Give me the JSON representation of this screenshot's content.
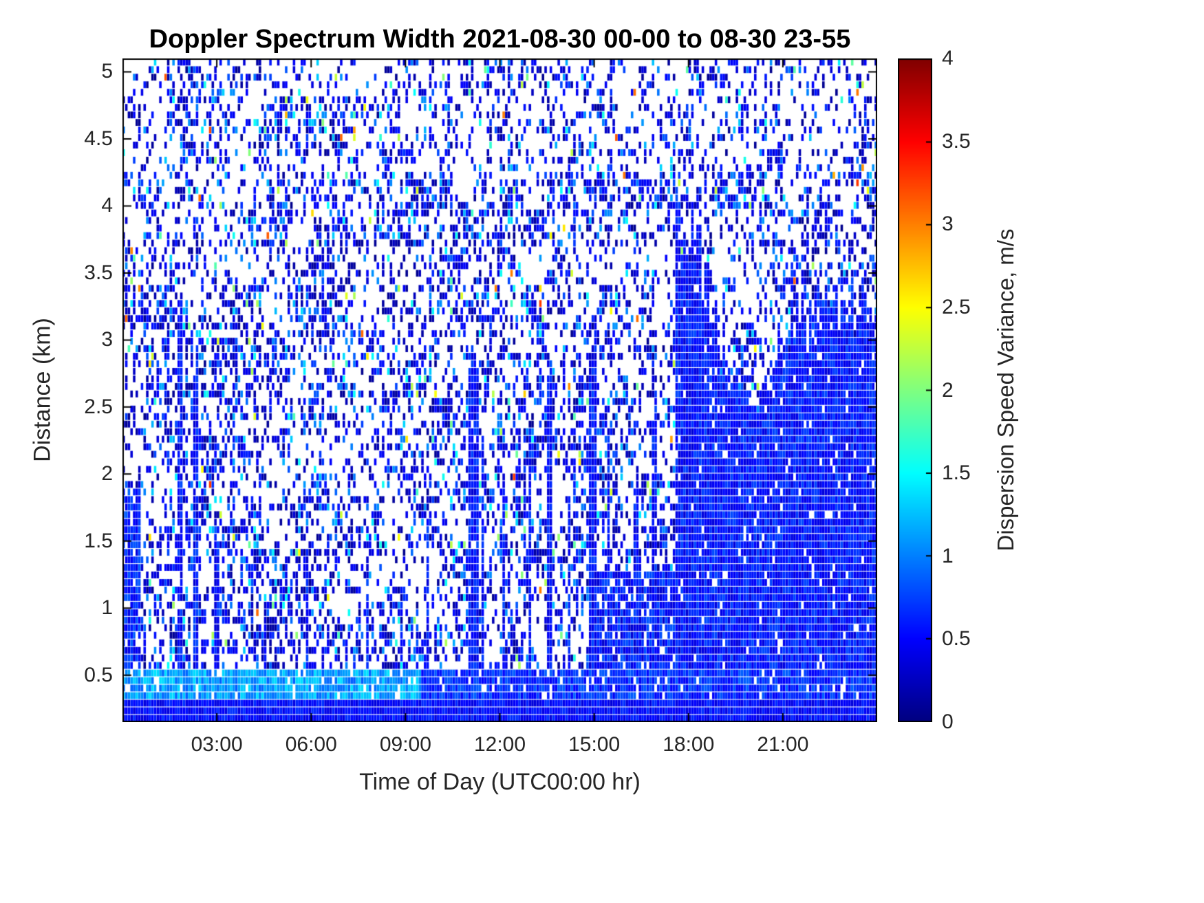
{
  "figure": {
    "background": "#ffffff",
    "frame_color": "#000000",
    "tick_color": "#262626"
  },
  "chart_data": {
    "type": "heatmap",
    "title": "Doppler Spectrum Width 2021-08-30 00-00 to 08-30 23-55",
    "xlabel": "Time of Day (UTC00:00 hr)",
    "ylabel": "Distance (km)",
    "x_range_hours": [
      0,
      24
    ],
    "x_ticks": [
      {
        "hour": 3,
        "label": "03:00"
      },
      {
        "hour": 6,
        "label": "06:00"
      },
      {
        "hour": 9,
        "label": "09:00"
      },
      {
        "hour": 12,
        "label": "12:00"
      },
      {
        "hour": 15,
        "label": "15:00"
      },
      {
        "hour": 18,
        "label": "18:00"
      },
      {
        "hour": 21,
        "label": "21:00"
      }
    ],
    "y_range_km": [
      0.15,
      5.1
    ],
    "y_ticks": [
      {
        "km": 0.5,
        "label": "0.5"
      },
      {
        "km": 1.0,
        "label": "1"
      },
      {
        "km": 1.5,
        "label": "1.5"
      },
      {
        "km": 2.0,
        "label": "2"
      },
      {
        "km": 2.5,
        "label": "2.5"
      },
      {
        "km": 3.0,
        "label": "3"
      },
      {
        "km": 3.5,
        "label": "3.5"
      },
      {
        "km": 4.0,
        "label": "4"
      },
      {
        "km": 4.5,
        "label": "4.5"
      },
      {
        "km": 5.0,
        "label": "5"
      }
    ],
    "colorbar": {
      "label": "Dispersion Speed Variance, m/s",
      "range": [
        0,
        4
      ],
      "colormap": "jet",
      "ticks": [
        {
          "v": 0,
          "label": "0"
        },
        {
          "v": 0.5,
          "label": "0.5"
        },
        {
          "v": 1,
          "label": "1"
        },
        {
          "v": 1.5,
          "label": "1.5"
        },
        {
          "v": 2,
          "label": "2"
        },
        {
          "v": 2.5,
          "label": "2.5"
        },
        {
          "v": 3,
          "label": "3"
        },
        {
          "v": 3.5,
          "label": "3.5"
        },
        {
          "v": 4,
          "label": "4"
        }
      ]
    },
    "pattern": {
      "seed": 830,
      "grid": {
        "cols": 288,
        "rows": 88
      },
      "speckle": {
        "base_prob": 0.4,
        "high_alt_prob": 0.3,
        "high_alt_km": 4.2
      },
      "value_mix": [
        {
          "p": 0.7,
          "lo": 0.05,
          "hi": 0.6
        },
        {
          "p": 0.2,
          "lo": 0.6,
          "hi": 1.1
        },
        {
          "p": 0.075,
          "lo": 1.0,
          "hi": 1.6
        },
        {
          "p": 0.02,
          "lo": 1.6,
          "hi": 2.5
        },
        {
          "p": 0.005,
          "lo": 2.5,
          "hi": 3.3
        }
      ],
      "bottom_band": {
        "top_km": 0.3,
        "v_lo": 0.35,
        "v_hi": 0.7
      },
      "cyan_band": {
        "top_km": 0.54,
        "prob": 0.93,
        "morning_until_hr": 9.5,
        "v_morning_lo": 0.85,
        "v_morning_hi": 1.4,
        "v_later_lo": 0.45,
        "v_later_hi": 0.9
      },
      "left_block": {
        "until_hr": 0.6,
        "top_km": 1.9,
        "prob": 0.9
      },
      "low_dense": {
        "after_hr": 15.0,
        "top_km": 1.25,
        "prob": 0.85
      },
      "streak_values": {
        "lo": 0.3,
        "hi": 0.8,
        "prob": 0.95
      },
      "streaks": [
        {
          "t": 1.85,
          "hw": 0.1,
          "top": 3.3
        },
        {
          "t": 2.35,
          "hw": 0.07,
          "top": 2.9
        },
        {
          "t": 3.0,
          "hw": 0.05,
          "top": 1.6
        },
        {
          "t": 5.9,
          "hw": 0.05,
          "top": 1.5
        },
        {
          "t": 7.8,
          "hw": 0.05,
          "top": 1.4
        },
        {
          "t": 9.7,
          "hw": 0.05,
          "top": 1.8
        },
        {
          "t": 11.15,
          "hw": 0.18,
          "top": 3.05
        },
        {
          "t": 11.45,
          "hw": 0.07,
          "top": 2.2
        },
        {
          "t": 12.15,
          "hw": 0.05,
          "top": 1.9
        },
        {
          "t": 12.95,
          "hw": 0.07,
          "top": 2.3
        },
        {
          "t": 13.6,
          "hw": 0.1,
          "top": 2.75
        },
        {
          "t": 14.2,
          "hw": 0.05,
          "top": 1.8
        },
        {
          "t": 14.95,
          "hw": 0.12,
          "top": 3.05
        },
        {
          "t": 15.45,
          "hw": 0.06,
          "top": 2.3
        },
        {
          "t": 16.3,
          "hw": 0.08,
          "top": 1.9
        },
        {
          "t": 16.9,
          "hw": 0.06,
          "top": 2.5
        },
        {
          "t": 17.9,
          "hw": 0.3,
          "top": 3.92
        }
      ],
      "dense_regions": [
        {
          "t0": 18.2,
          "t1": 19.3,
          "top0": 3.8,
          "top1": 2.7,
          "prob": 0.96
        },
        {
          "t0": 19.3,
          "t1": 20.6,
          "top0": 2.7,
          "top1": 2.5,
          "prob": 0.96
        },
        {
          "t0": 20.6,
          "t1": 22.3,
          "top0": 3.0,
          "top1": 3.25,
          "prob": 0.96
        },
        {
          "t0": 22.3,
          "t1": 24.0,
          "top0": 3.25,
          "top1": 3.2,
          "prob": 0.96
        }
      ]
    }
  }
}
